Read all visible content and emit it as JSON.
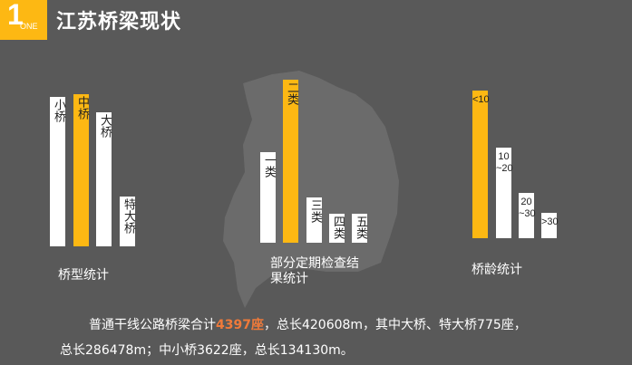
{
  "header": {
    "badge_number": "1",
    "badge_sub": "ONE",
    "title": "江苏桥梁现状"
  },
  "chart_data": [
    {
      "type": "bar",
      "title": "桥型统计",
      "categories": [
        "小桥",
        "中桥",
        "大桥",
        "特大桥"
      ],
      "values": [
        165,
        168,
        148,
        55
      ],
      "highlight": "中桥",
      "colors": {
        "normal": "#ffffff",
        "highlight": "#fdb813"
      }
    },
    {
      "type": "bar",
      "title": "部分定期检查结果统计",
      "categories": [
        "一类",
        "二类",
        "三类",
        "四类",
        "五类"
      ],
      "values": [
        100,
        180,
        50,
        32,
        32
      ],
      "highlight": "二类",
      "colors": {
        "normal": "#ffffff",
        "highlight": "#fdb813"
      }
    },
    {
      "type": "bar",
      "title": "桥龄统计",
      "categories": [
        "<10",
        "10~20",
        "20~30",
        ">30"
      ],
      "values": [
        163,
        100,
        50,
        28
      ],
      "highlight": "<10",
      "colors": {
        "normal": "#ffffff",
        "highlight": "#fdb813"
      }
    }
  ],
  "summary": {
    "line1_pre": "普通干线公路桥梁合计",
    "line1_hl": "4397座",
    "line1_post": "，总长420608m，其中大桥、特大桥775座，",
    "line2": "总长286478m；中小桥3622座，总长134130m。"
  }
}
